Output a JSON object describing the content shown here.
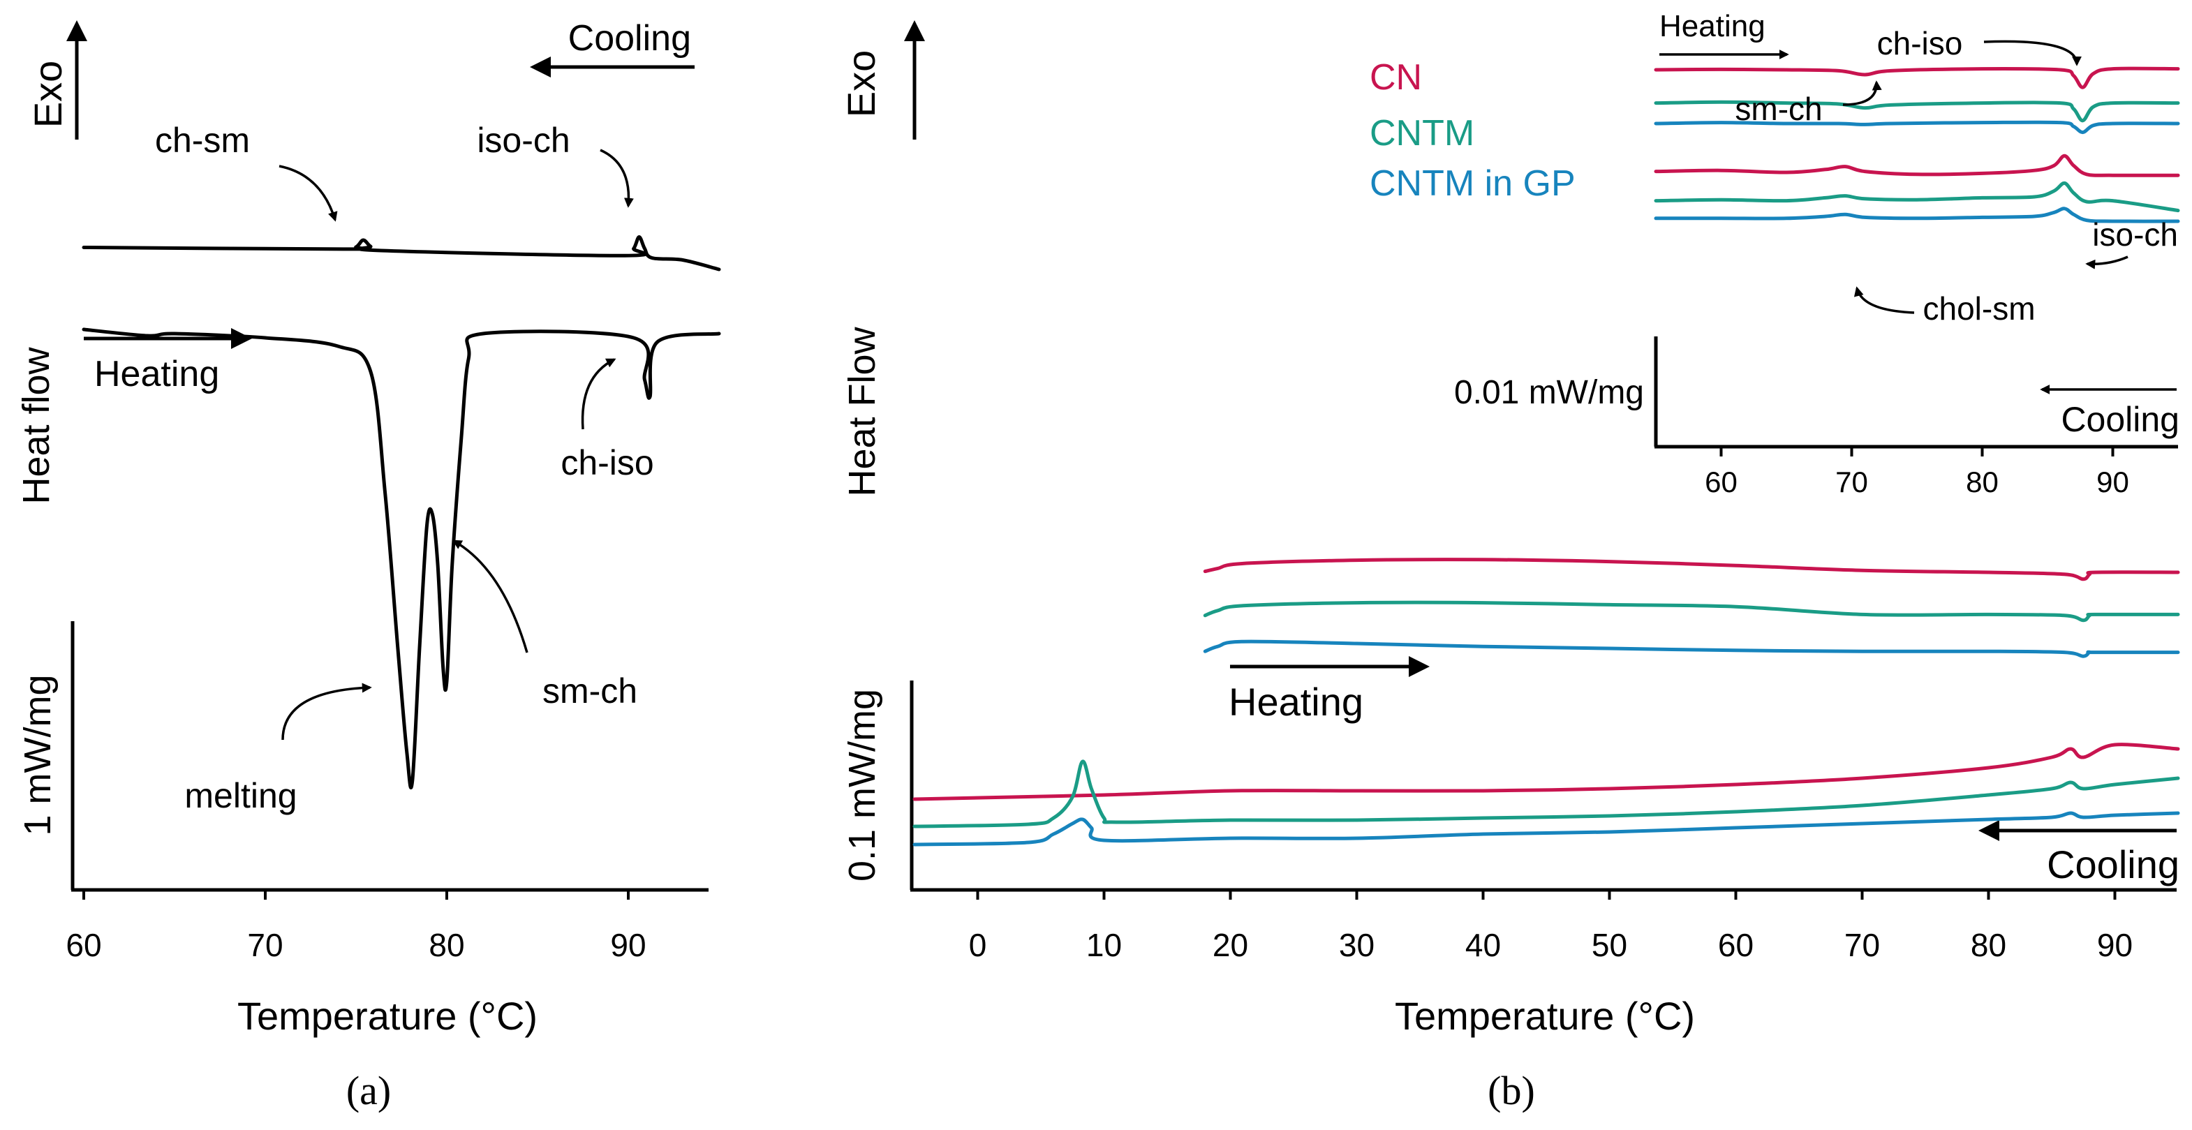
{
  "colors": {
    "CN": "#c8144f",
    "CNTM": "#1a9c86",
    "CNTM in GP": "#1784bd",
    "black": "#000000"
  },
  "chart_data": [
    {
      "id": "a",
      "type": "line",
      "panel_label": "(a)",
      "xlabel": "Temperature (°C)",
      "ylabel": "Heat flow",
      "exo_label": "Exo",
      "xlim": [
        60,
        95
      ],
      "xticks": [
        "60",
        "70",
        "80",
        "90"
      ],
      "scale_bar_label": "1 mW/mg",
      "direction_labels": {
        "cooling": "Cooling",
        "heating": "Heating"
      },
      "annotations": [
        "ch-sm",
        "iso-ch",
        "ch-iso",
        "sm-ch",
        "melting"
      ],
      "series": [
        {
          "name": "Cooling",
          "x": [
            60,
            74.3,
            75.0,
            75.4,
            75.8,
            76.4,
            89.8,
            90.3,
            90.6,
            90.9,
            91.3,
            93,
            95
          ],
          "y": [
            0.95,
            0.87,
            0.97,
            1.3,
            1.0,
            0.8,
            0.56,
            0.9,
            1.45,
            0.9,
            0.45,
            0.35,
            -0.1
          ]
        },
        {
          "name": "Heating",
          "x": [
            60,
            63.5,
            65,
            70,
            74,
            75.8,
            76.6,
            77.3,
            77.8,
            78.1,
            78.5,
            78.9,
            79.2,
            79.5,
            79.8,
            80.0,
            80.3,
            80.8,
            81.2,
            82,
            90.3,
            90.9,
            91.2,
            91.6,
            95
          ],
          "y": [
            0.1,
            -0.05,
            0.0,
            -0.1,
            -0.3,
            -0.9,
            -3.8,
            -7.5,
            -10.0,
            -10.7,
            -7.5,
            -4.6,
            -4.3,
            -5.5,
            -8.0,
            -8.3,
            -5.5,
            -2.5,
            -0.6,
            0.0,
            -0.1,
            -1.1,
            -1.5,
            -0.2,
            0.0
          ]
        }
      ]
    },
    {
      "id": "b",
      "type": "line",
      "panel_label": "(b)",
      "xlabel": "Temperature (°C)",
      "ylabel": "Heat Flow",
      "exo_label": "Exo",
      "xlim": [
        -5,
        95
      ],
      "xticks": [
        "0",
        "10",
        "20",
        "30",
        "40",
        "50",
        "60",
        "70",
        "80",
        "90"
      ],
      "scale_bar_label": "0.1 mW/mg",
      "direction_labels": {
        "cooling": "Cooling",
        "heating": "Heating"
      },
      "series": [
        {
          "name": "CN heating",
          "x": [
            18,
            19,
            21,
            30,
            40,
            50,
            60,
            70,
            80,
            86,
            87.5,
            88,
            88.5,
            95
          ],
          "y": [
            0.05,
            0.2,
            0.45,
            0.62,
            0.65,
            0.55,
            0.35,
            0.1,
            0.0,
            -0.1,
            -0.35,
            -0.1,
            0.0,
            0.0
          ]
        },
        {
          "name": "CNTM heating",
          "x": [
            18,
            19,
            21,
            30,
            40,
            50,
            60,
            70,
            80,
            86,
            87.5,
            88,
            88.5,
            95
          ],
          "y": [
            -0.35,
            -0.1,
            0.15,
            0.3,
            0.3,
            0.2,
            0.1,
            -0.3,
            -0.3,
            -0.35,
            -0.6,
            -0.35,
            -0.3,
            -0.3
          ]
        },
        {
          "name": "CNTM in GP heating",
          "x": [
            18,
            19,
            21,
            30,
            40,
            50,
            60,
            70,
            80,
            86,
            87.5,
            88,
            88.5,
            95
          ],
          "y": [
            -0.65,
            -0.4,
            -0.15,
            -0.25,
            -0.4,
            -0.5,
            -0.6,
            -0.65,
            -0.65,
            -0.7,
            -0.9,
            -0.7,
            -0.7,
            -0.7
          ]
        },
        {
          "name": "CN cooling",
          "x": [
            -5,
            10,
            20,
            30,
            40,
            50,
            60,
            70,
            80,
            85,
            86.5,
            87.5,
            90,
            95
          ],
          "y": [
            0.0,
            0.1,
            0.2,
            0.2,
            0.2,
            0.25,
            0.35,
            0.5,
            0.75,
            1.0,
            1.2,
            1.0,
            1.3,
            1.2
          ]
        },
        {
          "name": "CNTM cooling",
          "x": [
            -5,
            4,
            6,
            7.5,
            8.3,
            9,
            10,
            11,
            20,
            30,
            40,
            50,
            60,
            70,
            80,
            85,
            86.5,
            87.5,
            90,
            95
          ],
          "y": [
            -0.4,
            -0.35,
            -0.2,
            0.3,
            1.15,
            0.5,
            -0.2,
            -0.3,
            -0.25,
            -0.25,
            -0.2,
            -0.15,
            -0.05,
            0.1,
            0.35,
            0.5,
            0.65,
            0.5,
            0.6,
            0.75
          ]
        },
        {
          "name": "CNTM in GP cooling",
          "x": [
            -5,
            4,
            6,
            7.5,
            8.3,
            9,
            10,
            20,
            30,
            40,
            50,
            60,
            70,
            80,
            85,
            86.5,
            87.5,
            90,
            95
          ],
          "y": [
            -0.75,
            -0.7,
            -0.5,
            -0.25,
            -0.15,
            -0.35,
            -0.65,
            -0.6,
            -0.6,
            -0.5,
            -0.45,
            -0.35,
            -0.25,
            -0.15,
            -0.1,
            0.0,
            -0.1,
            -0.05,
            0.0
          ]
        }
      ]
    },
    {
      "id": "b-inset",
      "type": "line",
      "xlim": [
        55,
        95
      ],
      "xticks": [
        "60",
        "70",
        "80",
        "90"
      ],
      "scale_bar_label": "0.01 mW/mg",
      "legend": [
        "CN",
        "CNTM",
        "CNTM in GP"
      ],
      "legend_position": "top-left",
      "direction_labels": {
        "cooling": "Cooling",
        "heating": "Heating"
      },
      "annotations": [
        "ch-iso",
        "sm-ch",
        "iso-ch",
        "chol-sm"
      ],
      "series": [
        {
          "name": "CN heating",
          "x": [
            55,
            60,
            65,
            69,
            71,
            73,
            80,
            86,
            87,
            87.7,
            88.5,
            90,
            95
          ],
          "y": [
            0.0,
            0.02,
            0.0,
            -0.05,
            -0.25,
            -0.05,
            0.05,
            0.0,
            -0.3,
            -0.9,
            -0.2,
            0.05,
            0.05
          ]
        },
        {
          "name": "CNTM heating",
          "x": [
            55,
            60,
            65,
            69,
            71,
            73,
            80,
            86,
            87,
            87.7,
            88.5,
            90,
            95
          ],
          "y": [
            -1.7,
            -1.65,
            -1.7,
            -1.75,
            -1.95,
            -1.8,
            -1.7,
            -1.7,
            -2.0,
            -2.6,
            -1.9,
            -1.7,
            -1.7
          ]
        },
        {
          "name": "CNTM in GP heating",
          "x": [
            55,
            60,
            65,
            69,
            71,
            73,
            80,
            86,
            87,
            87.7,
            88.5,
            90,
            95
          ],
          "y": [
            -2.75,
            -2.7,
            -2.75,
            -2.75,
            -2.8,
            -2.75,
            -2.7,
            -2.7,
            -2.9,
            -3.2,
            -2.85,
            -2.75,
            -2.75
          ]
        },
        {
          "name": "CN cooling",
          "x": [
            55,
            60,
            65,
            68,
            69.5,
            71,
            75,
            80,
            84,
            85.5,
            86.3,
            87,
            88,
            90,
            95
          ],
          "y": [
            -5.2,
            -5.15,
            -5.25,
            -5.1,
            -4.95,
            -5.2,
            -5.35,
            -5.3,
            -5.15,
            -4.9,
            -4.4,
            -4.9,
            -5.35,
            -5.4,
            -5.4
          ]
        },
        {
          "name": "CNTM cooling",
          "x": [
            55,
            60,
            65,
            68,
            69.5,
            71,
            75,
            80,
            84,
            85.5,
            86.3,
            87,
            88,
            90,
            95
          ],
          "y": [
            -6.7,
            -6.65,
            -6.7,
            -6.55,
            -6.45,
            -6.6,
            -6.65,
            -6.55,
            -6.5,
            -6.2,
            -5.8,
            -6.3,
            -6.75,
            -6.7,
            -7.2
          ]
        },
        {
          "name": "CNTM in GP cooling",
          "x": [
            55,
            60,
            65,
            68,
            69.5,
            71,
            75,
            80,
            84,
            85.5,
            86.3,
            87,
            88,
            90,
            95
          ],
          "y": [
            -7.6,
            -7.6,
            -7.6,
            -7.5,
            -7.4,
            -7.55,
            -7.6,
            -7.55,
            -7.5,
            -7.3,
            -7.1,
            -7.4,
            -7.7,
            -7.75,
            -7.75
          ]
        }
      ]
    }
  ]
}
